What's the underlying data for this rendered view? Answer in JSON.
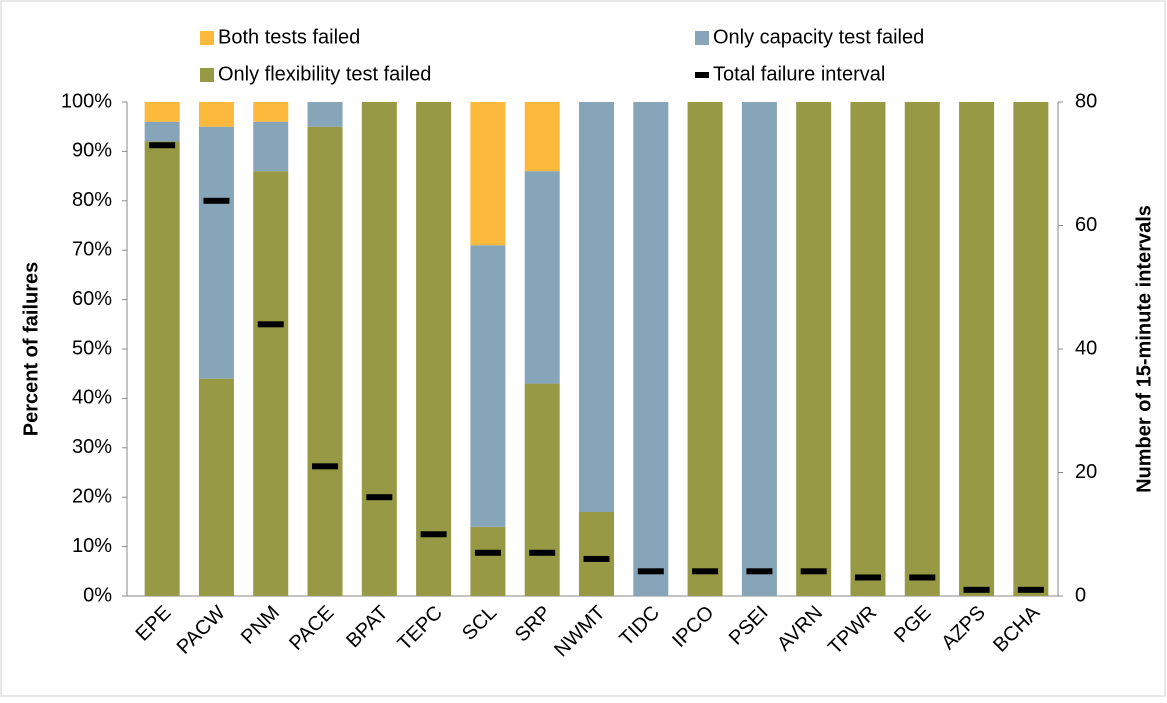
{
  "chart_data": {
    "type": "bar",
    "stacked": true,
    "ylabel": "Percent of failures",
    "y2label": "Number of 15-minute intervals",
    "categories": [
      "EPE",
      "PACW",
      "PNM",
      "PACE",
      "BPAT",
      "TEPC",
      "SCL",
      "SRP",
      "NWMT",
      "TIDC",
      "IPCO",
      "PSEI",
      "AVRN",
      "TPWR",
      "PGE",
      "AZPS",
      "BCHA"
    ],
    "series": [
      {
        "name": "Both tests failed",
        "color": "#fdb93b",
        "values": [
          4,
          5,
          4,
          0,
          0,
          0,
          29,
          14,
          0,
          0,
          0,
          0,
          0,
          0,
          0,
          0,
          0
        ]
      },
      {
        "name": "Only capacity test failed",
        "color": "#87a5b9",
        "values": [
          4,
          51,
          10,
          5,
          0,
          0,
          57,
          43,
          83,
          100,
          0,
          100,
          0,
          0,
          0,
          0,
          0
        ]
      },
      {
        "name": "Only flexibility test failed",
        "color": "#979945",
        "values": [
          92,
          44,
          86,
          95,
          100,
          100,
          14,
          43,
          17,
          0,
          100,
          0,
          100,
          100,
          100,
          100,
          100
        ]
      },
      {
        "name": "Total failure interval",
        "color": "#000000",
        "type": "marker",
        "axis": "y2",
        "values": [
          73,
          64,
          44,
          21,
          16,
          10,
          7,
          7,
          6,
          4,
          4,
          4,
          4,
          3,
          3,
          1,
          1
        ]
      }
    ],
    "ylim": [
      0,
      100
    ],
    "yticks": [
      {
        "value": 0,
        "label": "0%"
      },
      {
        "value": 10,
        "label": "10%"
      },
      {
        "value": 20,
        "label": "20%"
      },
      {
        "value": 30,
        "label": "30%"
      },
      {
        "value": 40,
        "label": "40%"
      },
      {
        "value": 50,
        "label": "50%"
      },
      {
        "value": 60,
        "label": "60%"
      },
      {
        "value": 70,
        "label": "70%"
      },
      {
        "value": 80,
        "label": "80%"
      },
      {
        "value": 90,
        "label": "90%"
      },
      {
        "value": 100,
        "label": "100%"
      }
    ],
    "y2lim": [
      0,
      80
    ],
    "y2ticks": [
      0,
      20,
      40,
      60,
      80
    ],
    "legend": "top"
  }
}
